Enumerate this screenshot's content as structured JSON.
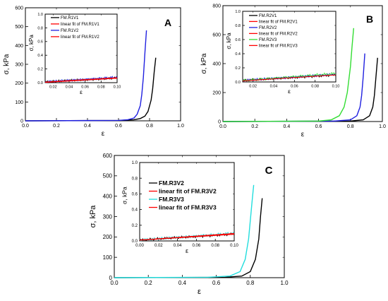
{
  "chart_data": [
    {
      "type": "line",
      "panel_label": "A",
      "xlabel": "ε",
      "ylabel": "σ, kPa",
      "xlim": [
        0.0,
        1.0
      ],
      "ylim": [
        0,
        600
      ],
      "xticks": [
        "0.0",
        "0.2",
        "0.4",
        "0.6",
        "0.8",
        "1.0"
      ],
      "yticks": [
        "0",
        "100",
        "200",
        "300",
        "400",
        "500",
        "600"
      ],
      "series": [
        {
          "name": "FM.R1V1",
          "color": "#000000",
          "x": [
            0.0,
            0.6,
            0.7,
            0.74,
            0.77,
            0.79,
            0.81,
            0.82,
            0.83,
            0.84
          ],
          "y": [
            0,
            2,
            6,
            12,
            25,
            50,
            110,
            170,
            260,
            335
          ]
        },
        {
          "name": "FM.R1V2",
          "color": "#2020e0",
          "x": [
            0.0,
            0.6,
            0.66,
            0.7,
            0.72,
            0.74,
            0.75,
            0.76,
            0.77,
            0.78
          ],
          "y": [
            0,
            2,
            6,
            15,
            35,
            80,
            140,
            230,
            360,
            480
          ]
        }
      ],
      "inset": {
        "xlim": [
          0.01,
          0.1
        ],
        "ylim": [
          0.0,
          1.0
        ],
        "xticks": [
          "0.02",
          "0.04",
          "0.06",
          "0.08",
          "0.10"
        ],
        "yticks": [
          "0.0",
          "0.2",
          "0.4",
          "0.6",
          "0.8",
          "1.0"
        ],
        "xlabel": "ε",
        "ylabel": "σ, kPa",
        "legend": [
          {
            "name": "FM.R1V1",
            "color": "#000000"
          },
          {
            "name": "linear fit of FM.R1V1",
            "color": "#ff0000"
          },
          {
            "name": "FM.R1V2",
            "color": "#2020e0"
          },
          {
            "name": "linear fit of FM.R1V2",
            "color": "#ff0000"
          }
        ],
        "series": [
          {
            "name": "FM.R1V1",
            "color": "#000000",
            "x": [
              0.01,
              0.1
            ],
            "y": [
              0.01,
              0.07
            ]
          },
          {
            "name": "FM.R1V2",
            "color": "#2020e0",
            "x": [
              0.01,
              0.1
            ],
            "y": [
              0.01,
              0.08
            ]
          },
          {
            "name": "linear fit of FM.R1V1",
            "color": "#ff0000",
            "x": [
              0.01,
              0.1
            ],
            "y": [
              0.005,
              0.065
            ]
          },
          {
            "name": "linear fit of FM.R1V2",
            "color": "#ff0000",
            "x": [
              0.01,
              0.1
            ],
            "y": [
              0.008,
              0.072
            ]
          }
        ]
      }
    },
    {
      "type": "line",
      "panel_label": "B",
      "xlabel": "ε",
      "ylabel": "σ, kPa",
      "xlim": [
        0.0,
        1.0
      ],
      "ylim": [
        0,
        800
      ],
      "xticks": [
        "0.0",
        "0.2",
        "0.4",
        "0.6",
        "0.8",
        "1.0"
      ],
      "yticks": [
        "0",
        "200",
        "400",
        "600",
        "800"
      ],
      "series": [
        {
          "name": "FM.R2V1",
          "color": "#000000",
          "x": [
            0.0,
            0.8,
            0.88,
            0.92,
            0.94,
            0.95,
            0.96,
            0.97
          ],
          "y": [
            0,
            3,
            12,
            40,
            100,
            180,
            310,
            440
          ]
        },
        {
          "name": "FM.R2V2",
          "color": "#2020e0",
          "x": [
            0.0,
            0.7,
            0.8,
            0.84,
            0.86,
            0.87,
            0.88,
            0.89
          ],
          "y": [
            0,
            3,
            12,
            40,
            100,
            180,
            310,
            470
          ]
        },
        {
          "name": "FM.R2V3",
          "color": "#33dd33",
          "x": [
            0.0,
            0.6,
            0.68,
            0.73,
            0.76,
            0.78,
            0.8,
            0.81,
            0.82
          ],
          "y": [
            0,
            3,
            12,
            40,
            100,
            200,
            380,
            520,
            645
          ]
        }
      ],
      "inset": {
        "xlim": [
          0.01,
          0.1
        ],
        "ylim": [
          0.0,
          1.0
        ],
        "xticks": [
          "0.02",
          "0.04",
          "0.06",
          "0.08",
          "0.10"
        ],
        "yticks": [
          "0.0",
          "0.2",
          "0.4",
          "0.6",
          "0.8",
          "1.0"
        ],
        "xlabel": "ε",
        "ylabel": "σ, kPa",
        "legend": [
          {
            "name": "FM.R2V1",
            "color": "#000000"
          },
          {
            "name": "linear fit of FM.R2V1",
            "color": "#ff0000"
          },
          {
            "name": "FM.R2V2",
            "color": "#2020e0"
          },
          {
            "name": "linear fit of FM.R2V2",
            "color": "#ff0000"
          },
          {
            "name": "FM.R2V3",
            "color": "#33dd33"
          },
          {
            "name": "linear fit of FM.R1V3",
            "color": "#ff0000"
          }
        ],
        "series": [
          {
            "name": "FM.R2V1",
            "color": "#000000",
            "x": [
              0.01,
              0.1
            ],
            "y": [
              0.02,
              0.1
            ]
          },
          {
            "name": "FM.R2V2",
            "color": "#2020e0",
            "x": [
              0.01,
              0.1
            ],
            "y": [
              0.02,
              0.11
            ]
          },
          {
            "name": "FM.R2V3",
            "color": "#33dd33",
            "x": [
              0.01,
              0.1
            ],
            "y": [
              0.02,
              0.12
            ]
          },
          {
            "name": "linear fit of FM.R1V3",
            "color": "#ff0000",
            "x": [
              0.01,
              0.1
            ],
            "y": [
              0.015,
              0.1
            ]
          }
        ]
      }
    },
    {
      "type": "line",
      "panel_label": "C",
      "xlabel": "ε",
      "ylabel": "σ, kPa",
      "xlim": [
        0.0,
        1.0
      ],
      "ylim": [
        0,
        600
      ],
      "xticks": [
        "0.0",
        "0.2",
        "0.4",
        "0.6",
        "0.8",
        "1.0"
      ],
      "yticks": [
        "0",
        "100",
        "200",
        "300",
        "400",
        "500",
        "600"
      ],
      "series": [
        {
          "name": "FM.R3V2",
          "color": "#000000",
          "x": [
            0.0,
            0.65,
            0.75,
            0.8,
            0.83,
            0.85,
            0.86,
            0.87
          ],
          "y": [
            0,
            2,
            8,
            30,
            90,
            190,
            300,
            390
          ]
        },
        {
          "name": "FM.R3V3",
          "color": "#22dddd",
          "x": [
            0.0,
            0.55,
            0.68,
            0.74,
            0.77,
            0.79,
            0.8,
            0.81,
            0.82
          ],
          "y": [
            0,
            2,
            8,
            30,
            90,
            190,
            280,
            370,
            455
          ]
        }
      ],
      "inset": {
        "xlim": [
          0.0,
          0.1
        ],
        "ylim": [
          0.0,
          1.0
        ],
        "xticks": [
          "0.00",
          "0.02",
          "0.04",
          "0.06",
          "0.08",
          "0.10"
        ],
        "yticks": [
          "0.0",
          "0.2",
          "0.4",
          "0.6",
          "0.8",
          "1.0"
        ],
        "xlabel": "ε",
        "ylabel": "σ, kPa",
        "legend": [
          {
            "name": "FM.R3V2",
            "color": "#000000"
          },
          {
            "name": "linear fit of FM.R3V2",
            "color": "#ff0000"
          },
          {
            "name": "FM.R3V3",
            "color": "#22dddd"
          },
          {
            "name": "linear fit of FM.R3V3",
            "color": "#ff0000"
          }
        ],
        "series": [
          {
            "name": "FM.R3V2",
            "color": "#000000",
            "x": [
              0.0,
              0.1
            ],
            "y": [
              0.01,
              0.09
            ]
          },
          {
            "name": "FM.R3V3",
            "color": "#22dddd",
            "x": [
              0.0,
              0.1
            ],
            "y": [
              0.01,
              0.1
            ]
          },
          {
            "name": "linear fit of FM.R3V2",
            "color": "#ff0000",
            "x": [
              0.0,
              0.1
            ],
            "y": [
              0.01,
              0.085
            ]
          },
          {
            "name": "linear fit of FM.R3V3",
            "color": "#ff0000",
            "x": [
              0.0,
              0.1
            ],
            "y": [
              0.012,
              0.095
            ]
          }
        ]
      }
    }
  ]
}
